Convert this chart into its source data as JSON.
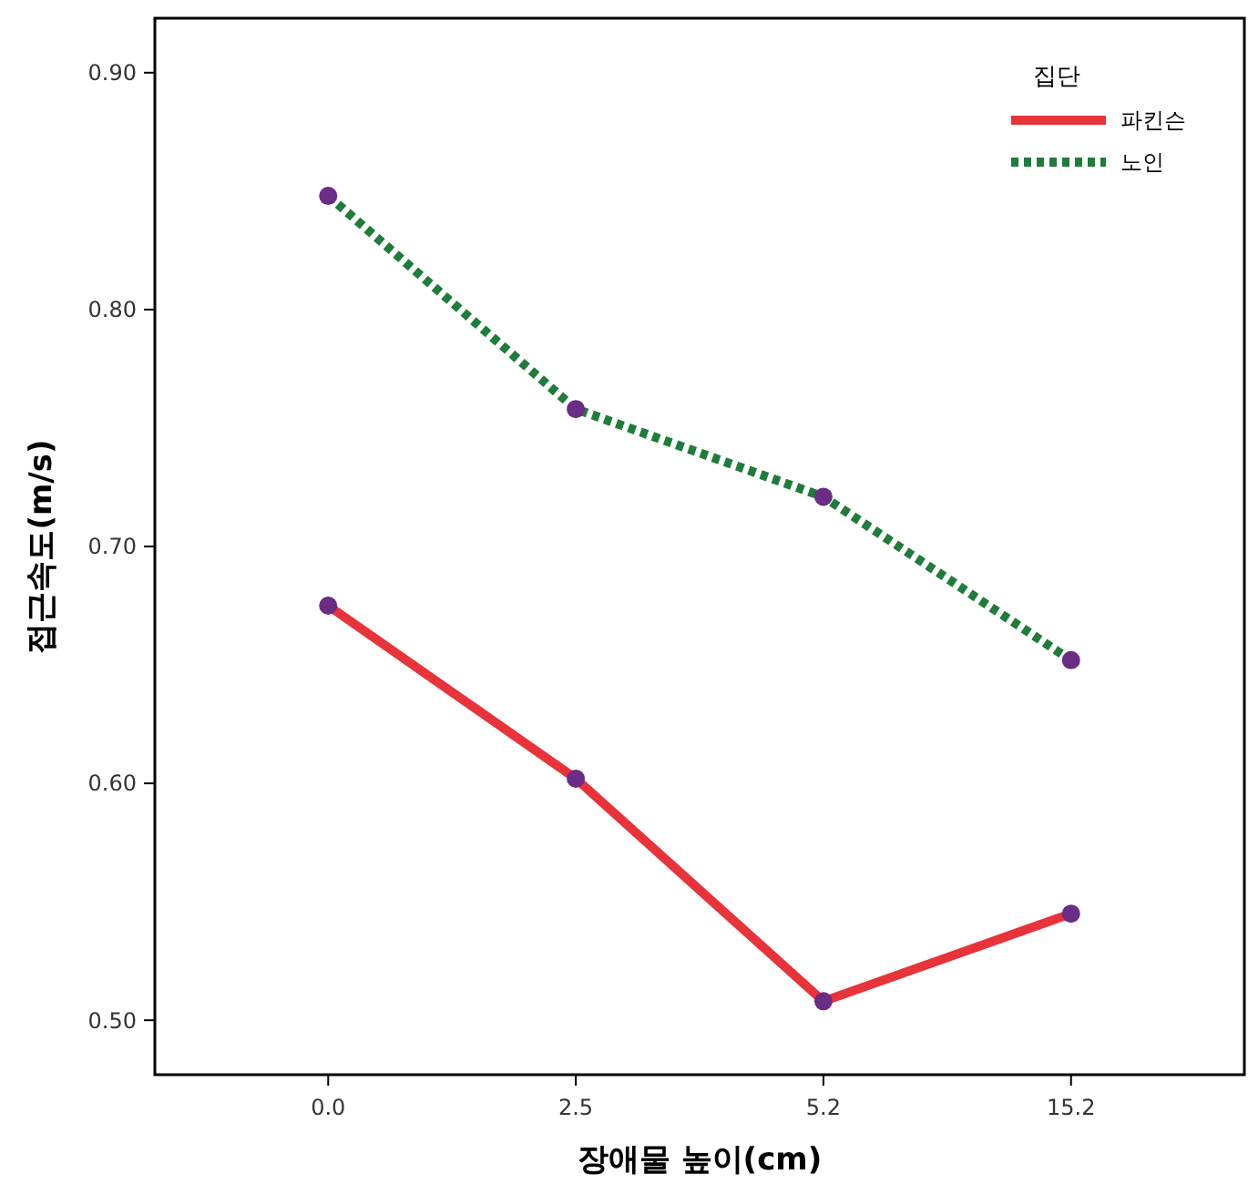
{
  "chart_data": {
    "type": "line",
    "xlabel": "장애물 높이(cm)",
    "ylabel": "접근속도(m/s)",
    "legend_title": "집단",
    "categories": [
      "0.0",
      "2.5",
      "5.2",
      "15.2"
    ],
    "series": [
      {
        "name": "파킨슨",
        "color": "#e8333a",
        "values": [
          0.675,
          0.602,
          0.508,
          0.545
        ],
        "line_style": "solid"
      },
      {
        "name": "노인",
        "color": "#1e7d3a",
        "values": [
          0.848,
          0.758,
          0.721,
          0.652
        ],
        "line_style": "dotted"
      }
    ],
    "ylim": [
      0.477,
      0.923
    ],
    "yticks": [
      {
        "value": 0.5,
        "label": "0.50"
      },
      {
        "value": 0.6,
        "label": "0.60"
      },
      {
        "value": 0.7,
        "label": "0.70"
      },
      {
        "value": 0.8,
        "label": "0.80"
      },
      {
        "value": 0.9,
        "label": "0.90"
      }
    ],
    "marker": "circle",
    "legend": "top right",
    "grid": false
  }
}
